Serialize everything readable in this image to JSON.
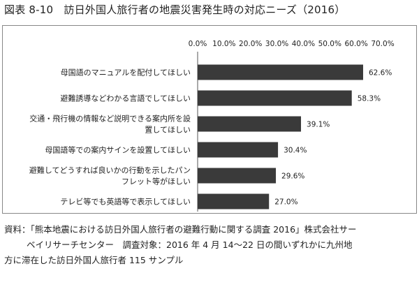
{
  "figure_title": "図表 8-10　訪日外国人旅行者の地震災害発生時の対応ニーズ（2016）",
  "chart_data": {
    "type": "bar",
    "orientation": "horizontal",
    "categories": [
      [
        "母国語のマニュアルを配付してほしい"
      ],
      [
        "避難誘導などわかる言語でしてほしい"
      ],
      [
        "交通・飛行機の情報など説明できる案内所を設",
        "置してほしい"
      ],
      [
        "母国語等での案内サインを設置してほしい"
      ],
      [
        "避難してどうすれば良いかの行動を示したパン",
        "フレット等がほしい"
      ],
      [
        "テレビ等でも英語等で表示してほしい"
      ]
    ],
    "values": [
      62.6,
      58.3,
      39.1,
      30.4,
      29.6,
      27.0
    ],
    "value_labels": [
      "62.6%",
      "58.3%",
      "39.1%",
      "30.4%",
      "29.6%",
      "27.0%"
    ],
    "xlim": [
      0,
      70
    ],
    "ticks": [
      "0.0%",
      "10.0%",
      "20.0%",
      "30.0%",
      "40.0%",
      "50.0%",
      "60.0%",
      "70.0%"
    ],
    "axis_position": "top",
    "grid": false,
    "bar_color": "#3a3a3a",
    "title": "",
    "xlabel": "",
    "ylabel": ""
  },
  "note": {
    "line1": "資料：「熊本地震における訪日外国人旅行者の避難行動に関する調査 2016」株式会社サー",
    "line2": "ベイリサーチセンター　調査対象：2016 年 4 月 14～22 日の間いずれかに九州地",
    "line3": "方に滞在した訪日外国人旅行者 115 サンプル"
  }
}
